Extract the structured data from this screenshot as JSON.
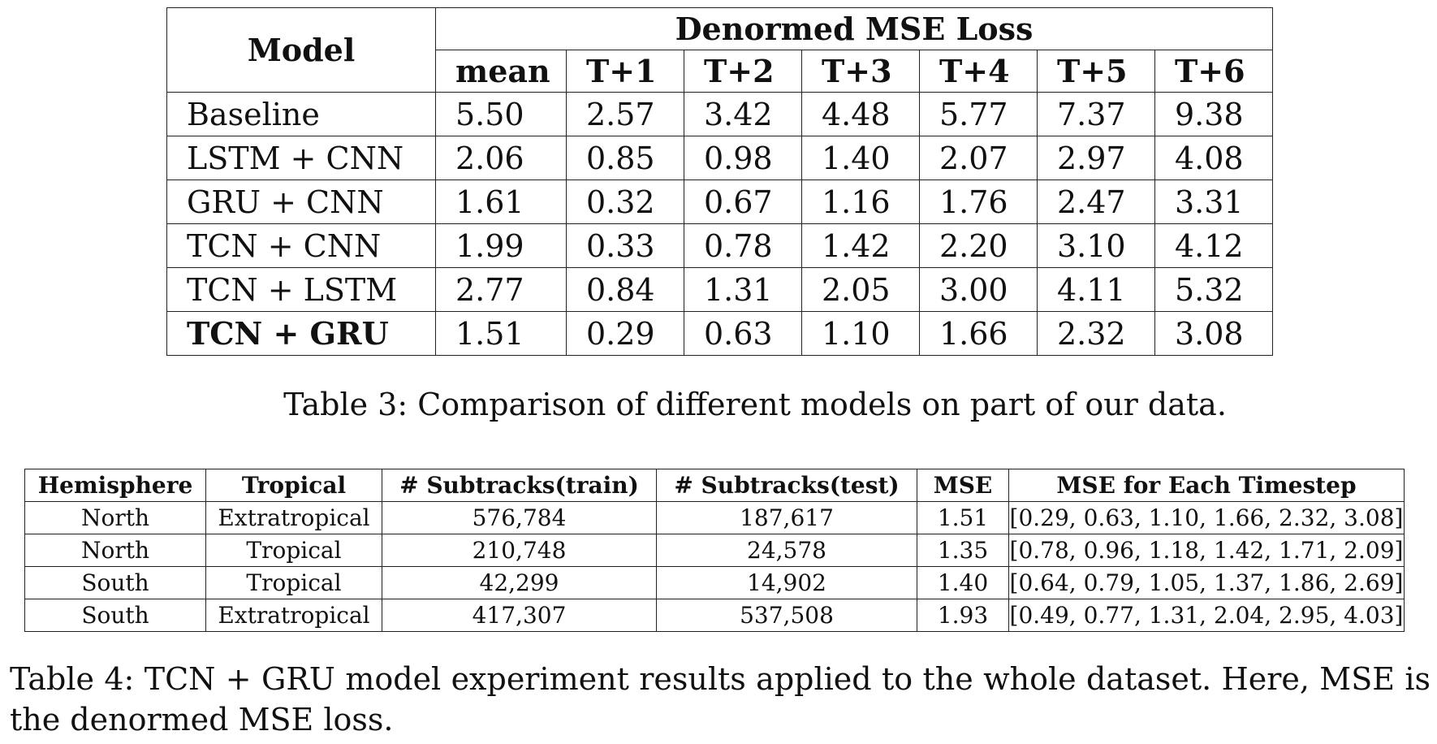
{
  "table3": {
    "model_header": "Model",
    "group_header": "Denormed MSE Loss",
    "columns": [
      "mean",
      "T+1",
      "T+2",
      "T+3",
      "T+4",
      "T+5",
      "T+6"
    ],
    "rows": [
      {
        "model": "Baseline",
        "bold": false,
        "values": [
          "5.50",
          "2.57",
          "3.42",
          "4.48",
          "5.77",
          "7.37",
          "9.38"
        ]
      },
      {
        "model": "LSTM + CNN",
        "bold": false,
        "values": [
          "2.06",
          "0.85",
          "0.98",
          "1.40",
          "2.07",
          "2.97",
          "4.08"
        ]
      },
      {
        "model": "GRU + CNN",
        "bold": false,
        "values": [
          "1.61",
          "0.32",
          "0.67",
          "1.16",
          "1.76",
          "2.47",
          "3.31"
        ]
      },
      {
        "model": "TCN + CNN",
        "bold": false,
        "values": [
          "1.99",
          "0.33",
          "0.78",
          "1.42",
          "2.20",
          "3.10",
          "4.12"
        ]
      },
      {
        "model": "TCN + LSTM",
        "bold": false,
        "values": [
          "2.77",
          "0.84",
          "1.31",
          "2.05",
          "3.00",
          "4.11",
          "5.32"
        ]
      },
      {
        "model": "TCN + GRU",
        "bold": true,
        "values": [
          "1.51",
          "0.29",
          "0.63",
          "1.10",
          "1.66",
          "2.32",
          "3.08"
        ]
      }
    ],
    "caption": "Table 3: Comparison of different models on part of our data."
  },
  "table4": {
    "headers": [
      "Hemisphere",
      "Tropical",
      "# Subtracks(train)",
      "# Subtracks(test)",
      "MSE",
      "MSE for Each Timestep"
    ],
    "rows": [
      [
        "North",
        "Extratropical",
        "576,784",
        "187,617",
        "1.51",
        "[0.29, 0.63, 1.10, 1.66, 2.32, 3.08]"
      ],
      [
        "North",
        "Tropical",
        "210,748",
        "24,578",
        "1.35",
        "[0.78, 0.96, 1.18, 1.42, 1.71, 2.09]"
      ],
      [
        "South",
        "Tropical",
        "42,299",
        "14,902",
        "1.40",
        "[0.64, 0.79, 1.05, 1.37, 1.86, 2.69]"
      ],
      [
        "South",
        "Extratropical",
        "417,307",
        "537,508",
        "1.93",
        "[0.49, 0.77, 1.31, 2.04, 2.95, 4.03]"
      ]
    ],
    "caption": "Table 4: TCN + GRU model experiment results applied to the whole dataset. Here, MSE is the denormed MSE loss."
  }
}
